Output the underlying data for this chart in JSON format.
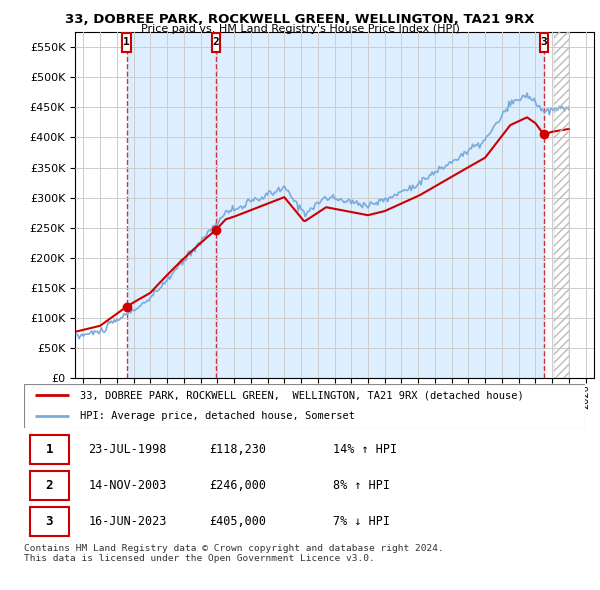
{
  "title": "33, DOBREE PARK, ROCKWELL GREEN, WELLINGTON, TA21 9RX",
  "subtitle": "Price paid vs. HM Land Registry's House Price Index (HPI)",
  "sale_prices": [
    118230,
    246000,
    405000
  ],
  "sale_labels": [
    "1",
    "2",
    "3"
  ],
  "legend_line1": "33, DOBREE PARK, ROCKWELL GREEN,  WELLINGTON, TA21 9RX (detached house)",
  "legend_line2": "HPI: Average price, detached house, Somerset",
  "table": [
    [
      "1",
      "23-JUL-1998",
      "£118,230",
      "14% ↑ HPI"
    ],
    [
      "2",
      "14-NOV-2003",
      "£246,000",
      "8% ↑ HPI"
    ],
    [
      "3",
      "16-JUN-2023",
      "£405,000",
      "7% ↓ HPI"
    ]
  ],
  "footer": "Contains HM Land Registry data © Crown copyright and database right 2024.\nThis data is licensed under the Open Government Licence v3.0.",
  "hpi_color": "#7aabdc",
  "price_color": "#cc0000",
  "shade_color": "#ddeeff",
  "marker_box_color": "#cc0000",
  "ylim": [
    0,
    575000
  ],
  "yticks": [
    0,
    50000,
    100000,
    150000,
    200000,
    250000,
    300000,
    350000,
    400000,
    450000,
    500000,
    550000
  ],
  "xlim_start": 1995.5,
  "xlim_end": 2026.5,
  "background_color": "#ffffff",
  "grid_color": "#cccccc"
}
